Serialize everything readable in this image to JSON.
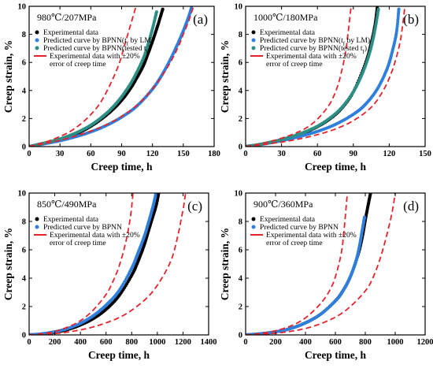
{
  "colors": {
    "experimental": "#000000",
    "bpnn_lm": "#2f7fdc",
    "bpnn_tested": "#2c8f86",
    "error_band": "#e8222b"
  },
  "chart_data": [
    {
      "type": "scatter",
      "panel_label": "(a)",
      "condition": "980℃/207MPa",
      "xlabel": "Creep time, h",
      "ylabel": "Creep strain, %",
      "xlim": [
        0,
        180
      ],
      "ylim": [
        0,
        10
      ],
      "xticks": [
        "0",
        "30",
        "60",
        "90",
        "120",
        "150",
        "180"
      ],
      "yticks": [
        "0",
        "2",
        "4",
        "6",
        "8",
        "10"
      ],
      "legend": [
        {
          "marker": "dot",
          "color": "#000000",
          "label": "Experimental data"
        },
        {
          "marker": "dot",
          "color": "#2f7fdc",
          "label": "Predicted curve by BPNN(t_f by LM)"
        },
        {
          "marker": "dot",
          "color": "#2c8f86",
          "label": "Predicted curve by BPNN(tested t_f)"
        },
        {
          "marker": "dash",
          "color": "#e8222b",
          "label": "Experimental data with ±20%\nerror of creep time"
        }
      ],
      "series": [
        {
          "name": "Experimental data",
          "x": [
            0,
            10,
            20,
            30,
            40,
            50,
            60,
            70,
            80,
            90,
            100,
            110,
            115,
            120,
            125,
            130
          ],
          "y": [
            0,
            0.16,
            0.32,
            0.5,
            0.75,
            1.05,
            1.45,
            1.95,
            2.55,
            3.3,
            4.3,
            5.6,
            6.5,
            7.5,
            8.6,
            9.8
          ]
        },
        {
          "name": "Predicted curve by BPNN(t_f by LM)",
          "x": [
            0,
            15,
            30,
            45,
            60,
            75,
            90,
            105,
            120,
            130,
            140,
            148,
            154,
            158
          ],
          "y": [
            0,
            0.2,
            0.42,
            0.7,
            1.05,
            1.5,
            2.1,
            2.9,
            4.1,
            5.2,
            6.6,
            7.9,
            9.0,
            9.9
          ]
        },
        {
          "name": "Predicted curve by BPNN(tested t_f)",
          "x": [
            0,
            10,
            20,
            30,
            40,
            50,
            60,
            70,
            80,
            90,
            100,
            110,
            115,
            120,
            124
          ],
          "y": [
            0,
            0.17,
            0.34,
            0.54,
            0.8,
            1.12,
            1.52,
            2.05,
            2.7,
            3.55,
            4.65,
            6.1,
            7.1,
            8.4,
            9.6
          ]
        },
        {
          "name": "Experimental data with ±20% error of creep time (−20%)",
          "x": [
            0,
            10,
            20,
            30,
            40,
            50,
            60,
            70,
            80,
            88,
            92,
            96,
            100,
            104
          ],
          "y": [
            0,
            0.2,
            0.42,
            0.72,
            1.08,
            1.6,
            2.28,
            3.2,
            4.6,
            6.0,
            7.0,
            8.0,
            9.0,
            10.0
          ]
        },
        {
          "name": "Experimental data with ±20% error of creep time (+20%)",
          "x": [
            0,
            15,
            30,
            45,
            60,
            75,
            90,
            105,
            120,
            135,
            145,
            150,
            155,
            160
          ],
          "y": [
            0,
            0.22,
            0.45,
            0.75,
            1.1,
            1.55,
            2.15,
            2.95,
            4.1,
            5.7,
            7.1,
            8.0,
            8.9,
            10.0
          ]
        }
      ]
    },
    {
      "type": "scatter",
      "panel_label": "(b)",
      "condition": "1000℃/180MPa",
      "xlabel": "Creep time, h",
      "ylabel": "Creep strain, %",
      "xlim": [
        0,
        150
      ],
      "ylim": [
        0,
        10
      ],
      "xticks": [
        "0",
        "30",
        "60",
        "90",
        "120",
        "150"
      ],
      "yticks": [
        "0",
        "2",
        "4",
        "6",
        "8",
        "10"
      ],
      "legend": [
        {
          "marker": "dot",
          "color": "#000000",
          "label": "Experimental data"
        },
        {
          "marker": "dot",
          "color": "#2f7fdc",
          "label": "Predicted curve by BPNN(t_f by LM)"
        },
        {
          "marker": "dot",
          "color": "#2c8f86",
          "label": "Predicted curve by BPNN(tested t_f)"
        },
        {
          "marker": "dash",
          "color": "#e8222b",
          "label": "Experimental data with ±20%\nerror of creep time"
        }
      ],
      "series": [
        {
          "name": "Experimental data",
          "x": [
            0,
            10,
            20,
            30,
            40,
            50,
            60,
            70,
            80,
            90,
            100,
            105,
            108,
            110
          ],
          "y": [
            0,
            0.12,
            0.28,
            0.48,
            0.72,
            1.02,
            1.42,
            1.95,
            2.7,
            3.9,
            5.9,
            7.4,
            8.6,
            9.9
          ]
        },
        {
          "name": "Predicted curve by BPNN(t_f by LM)",
          "x": [
            0,
            15,
            30,
            45,
            60,
            75,
            90,
            100,
            110,
            118,
            122,
            126,
            128
          ],
          "y": [
            0,
            0.18,
            0.42,
            0.72,
            1.08,
            1.58,
            2.3,
            3.0,
            4.1,
            5.5,
            6.6,
            8.1,
            9.8
          ]
        },
        {
          "name": "Predicted curve by BPNN(tested t_f)",
          "x": [
            0,
            10,
            20,
            30,
            40,
            50,
            60,
            70,
            80,
            90,
            98,
            104,
            108,
            111
          ],
          "y": [
            0,
            0.13,
            0.3,
            0.5,
            0.75,
            1.06,
            1.45,
            2.0,
            2.75,
            3.9,
            5.3,
            6.8,
            8.3,
            9.8
          ]
        },
        {
          "name": "Experimental data with ±20% error of creep time (−20%)",
          "x": [
            0,
            10,
            20,
            30,
            40,
            50,
            60,
            70,
            76,
            80,
            84,
            88
          ],
          "y": [
            0,
            0.15,
            0.35,
            0.6,
            0.9,
            1.3,
            1.95,
            3.0,
            4.1,
            5.3,
            7.0,
            9.9
          ]
        },
        {
          "name": "Experimental data with ±20% error of creep time (+20%)",
          "x": [
            0,
            15,
            30,
            45,
            60,
            75,
            90,
            105,
            115,
            122,
            127,
            130,
            133
          ],
          "y": [
            0,
            0.15,
            0.32,
            0.55,
            0.85,
            1.25,
            1.85,
            2.8,
            4.0,
            5.3,
            6.7,
            7.9,
            9.9
          ]
        }
      ]
    },
    {
      "type": "scatter",
      "panel_label": "(c)",
      "condition": "850℃/490MPa",
      "xlabel": "Creep time, h",
      "ylabel": "Creep strain, %",
      "xlim": [
        0,
        1400
      ],
      "ylim": [
        0,
        10
      ],
      "xticks": [
        "0",
        "200",
        "400",
        "600",
        "800",
        "1000",
        "1200",
        "1400"
      ],
      "yticks": [
        "0",
        "2",
        "4",
        "6",
        "8",
        "10"
      ],
      "legend": [
        {
          "marker": "dot",
          "color": "#000000",
          "label": "Experimental data"
        },
        {
          "marker": "dot",
          "color": "#2f7fdc",
          "label": "Predicted curve by BPNN"
        },
        {
          "marker": "dash",
          "color": "#e8222b",
          "label": "Experimental data with ±20%\nerror of creep time"
        }
      ],
      "series": [
        {
          "name": "Experimental data",
          "x": [
            0,
            100,
            200,
            300,
            400,
            500,
            600,
            700,
            800,
            850,
            900,
            950,
            990,
            1010
          ],
          "y": [
            0,
            0.06,
            0.18,
            0.38,
            0.7,
            1.15,
            1.8,
            2.75,
            4.2,
            5.2,
            6.4,
            7.9,
            9.1,
            10.0
          ]
        },
        {
          "name": "Predicted curve by BPNN",
          "x": [
            0,
            100,
            200,
            300,
            400,
            500,
            600,
            700,
            800,
            850,
            900,
            940,
            970,
            990
          ],
          "y": [
            0,
            0.08,
            0.22,
            0.45,
            0.82,
            1.35,
            2.1,
            3.1,
            4.7,
            5.8,
            7.0,
            8.2,
            9.2,
            10.0
          ]
        },
        {
          "name": "Experimental data with ±20% error of creep time (−20%)",
          "x": [
            0,
            100,
            200,
            300,
            400,
            500,
            600,
            650,
            700,
            750,
            790,
            810
          ],
          "y": [
            0,
            0.09,
            0.24,
            0.55,
            1.0,
            1.75,
            2.85,
            3.7,
            4.8,
            6.4,
            8.3,
            10.0
          ]
        },
        {
          "name": "Experimental data with ±20% error of creep time (+20%)",
          "x": [
            0,
            150,
            300,
            450,
            600,
            750,
            900,
            1000,
            1100,
            1150,
            1200,
            1220
          ],
          "y": [
            0,
            0.06,
            0.2,
            0.45,
            0.85,
            1.45,
            2.45,
            3.5,
            5.1,
            6.6,
            8.8,
            10.0
          ]
        }
      ]
    },
    {
      "type": "scatter",
      "panel_label": "(d)",
      "condition": "900℃/360MPa",
      "xlabel": "Creep time, h",
      "ylabel": "Creep strain, %",
      "xlim": [
        0,
        1200
      ],
      "ylim": [
        0,
        10
      ],
      "xticks": [
        "0",
        "200",
        "400",
        "600",
        "800",
        "1000",
        "1200"
      ],
      "yticks": [
        "0",
        "2",
        "4",
        "6",
        "8",
        "10"
      ],
      "legend": [
        {
          "marker": "dot",
          "color": "#000000",
          "label": "Experimental data"
        },
        {
          "marker": "dot",
          "color": "#2f7fdc",
          "label": "Predicted curve by BPNN"
        },
        {
          "marker": "dash",
          "color": "#e8222b",
          "label": "Experimental data with ±20%\nerror of creep time"
        }
      ],
      "series": [
        {
          "name": "Experimental data",
          "x": [
            0,
            100,
            200,
            300,
            400,
            500,
            600,
            650,
            700,
            750,
            780,
            800,
            820,
            835
          ],
          "y": [
            0,
            0.08,
            0.22,
            0.45,
            0.85,
            1.45,
            2.4,
            3.1,
            4.1,
            5.6,
            6.9,
            8.1,
            9.2,
            10.0
          ]
        },
        {
          "name": "Predicted curve by BPNN",
          "x": [
            0,
            100,
            200,
            300,
            400,
            500,
            600,
            650,
            700,
            740,
            760,
            780,
            795
          ],
          "y": [
            0,
            0.08,
            0.22,
            0.45,
            0.85,
            1.45,
            2.4,
            3.1,
            4.1,
            5.3,
            6.2,
            7.4,
            8.3
          ]
        },
        {
          "name": "Experimental data with ±20% error of creep time (−20%)",
          "x": [
            0,
            100,
            200,
            300,
            400,
            500,
            560,
            600,
            640,
            660,
            680
          ],
          "y": [
            0,
            0.1,
            0.3,
            0.62,
            1.2,
            2.2,
            3.1,
            4.1,
            5.8,
            7.6,
            10.0
          ]
        },
        {
          "name": "Experimental data with ±20% error of creep time (+20%)",
          "x": [
            0,
            150,
            300,
            450,
            600,
            700,
            800,
            850,
            900,
            950,
            980,
            1000
          ],
          "y": [
            0,
            0.08,
            0.25,
            0.6,
            1.25,
            2.0,
            3.1,
            4.0,
            5.4,
            7.3,
            8.7,
            10.0
          ]
        }
      ]
    }
  ]
}
